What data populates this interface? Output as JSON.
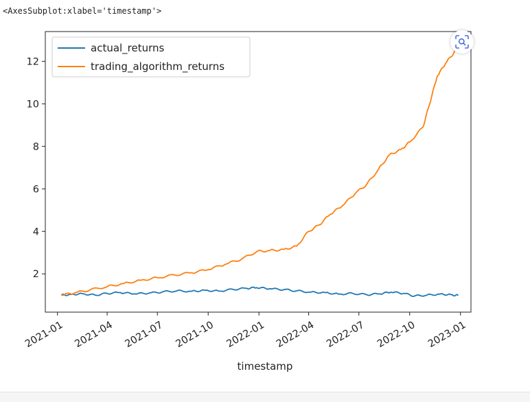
{
  "output_repr": "<AxesSubplot:xlabel='timestamp'>",
  "zoom_icon": "scan-magnify-icon",
  "colors": {
    "actual_returns": "#1f77b4",
    "trading_algorithm_returns": "#ff7f0e",
    "axes": "#222222"
  },
  "chart_data": {
    "type": "line",
    "title": "",
    "xlabel": "timestamp",
    "ylabel": "",
    "xlim": [
      "2020-12-10",
      "2023-01-20"
    ],
    "ylim": [
      0.2,
      13.4
    ],
    "x_ticks": [
      "2021-01-01",
      "2021-04-01",
      "2021-07-01",
      "2021-10-01",
      "2022-01-01",
      "2022-04-01",
      "2022-07-01",
      "2022-10-01",
      "2023-01-01"
    ],
    "x_tick_labels": [
      "2021-01",
      "2021-04",
      "2021-07",
      "2021-10",
      "2022-01",
      "2022-04",
      "2022-07",
      "2022-10",
      "2023-01"
    ],
    "y_ticks": [
      2,
      4,
      6,
      8,
      10,
      12
    ],
    "y_tick_labels": [
      "2",
      "4",
      "6",
      "8",
      "10",
      "12"
    ],
    "legend": {
      "placement": "upper-left",
      "entries": [
        "actual_returns",
        "trading_algorithm_returns"
      ]
    },
    "grid": false,
    "series": [
      {
        "name": "actual_returns",
        "x": [
          "2021-01-08",
          "2021-01-25",
          "2021-02-15",
          "2021-03-10",
          "2021-04-01",
          "2021-04-25",
          "2021-05-20",
          "2021-06-15",
          "2021-07-10",
          "2021-08-05",
          "2021-09-01",
          "2021-09-25",
          "2021-10-20",
          "2021-11-15",
          "2021-12-10",
          "2021-12-28",
          "2022-01-20",
          "2022-02-15",
          "2022-03-10",
          "2022-04-05",
          "2022-05-01",
          "2022-05-25",
          "2022-06-20",
          "2022-07-15",
          "2022-08-08",
          "2022-08-28",
          "2022-09-20",
          "2022-10-10",
          "2022-11-01",
          "2022-11-25",
          "2022-12-15",
          "2022-12-28"
        ],
        "values": [
          1.0,
          1.03,
          1.07,
          1.0,
          1.08,
          1.12,
          1.06,
          1.09,
          1.15,
          1.2,
          1.18,
          1.23,
          1.19,
          1.27,
          1.32,
          1.35,
          1.3,
          1.26,
          1.2,
          1.14,
          1.12,
          1.05,
          1.08,
          1.02,
          1.06,
          1.14,
          1.08,
          0.96,
          1.0,
          1.05,
          1.02,
          0.98
        ]
      },
      {
        "name": "trading_algorithm_returns",
        "x": [
          "2021-01-08",
          "2021-02-01",
          "2021-03-01",
          "2021-04-01",
          "2021-05-01",
          "2021-06-01",
          "2021-07-01",
          "2021-08-01",
          "2021-09-01",
          "2021-10-01",
          "2021-11-01",
          "2021-12-01",
          "2021-12-28",
          "2022-01-20",
          "2022-02-15",
          "2022-03-10",
          "2022-04-01",
          "2022-04-20",
          "2022-05-10",
          "2022-06-01",
          "2022-06-25",
          "2022-07-15",
          "2022-08-05",
          "2022-08-25",
          "2022-09-15",
          "2022-10-01",
          "2022-10-25",
          "2022-11-05",
          "2022-11-20",
          "2022-12-05",
          "2022-12-20",
          "2022-12-30"
        ],
        "values": [
          1.0,
          1.1,
          1.25,
          1.4,
          1.55,
          1.7,
          1.82,
          1.95,
          2.05,
          2.2,
          2.45,
          2.7,
          3.05,
          3.1,
          3.15,
          3.3,
          4.0,
          4.3,
          4.8,
          5.2,
          5.8,
          6.2,
          6.9,
          7.6,
          7.85,
          8.2,
          8.9,
          9.9,
          11.3,
          11.9,
          12.4,
          12.8
        ]
      }
    ]
  }
}
